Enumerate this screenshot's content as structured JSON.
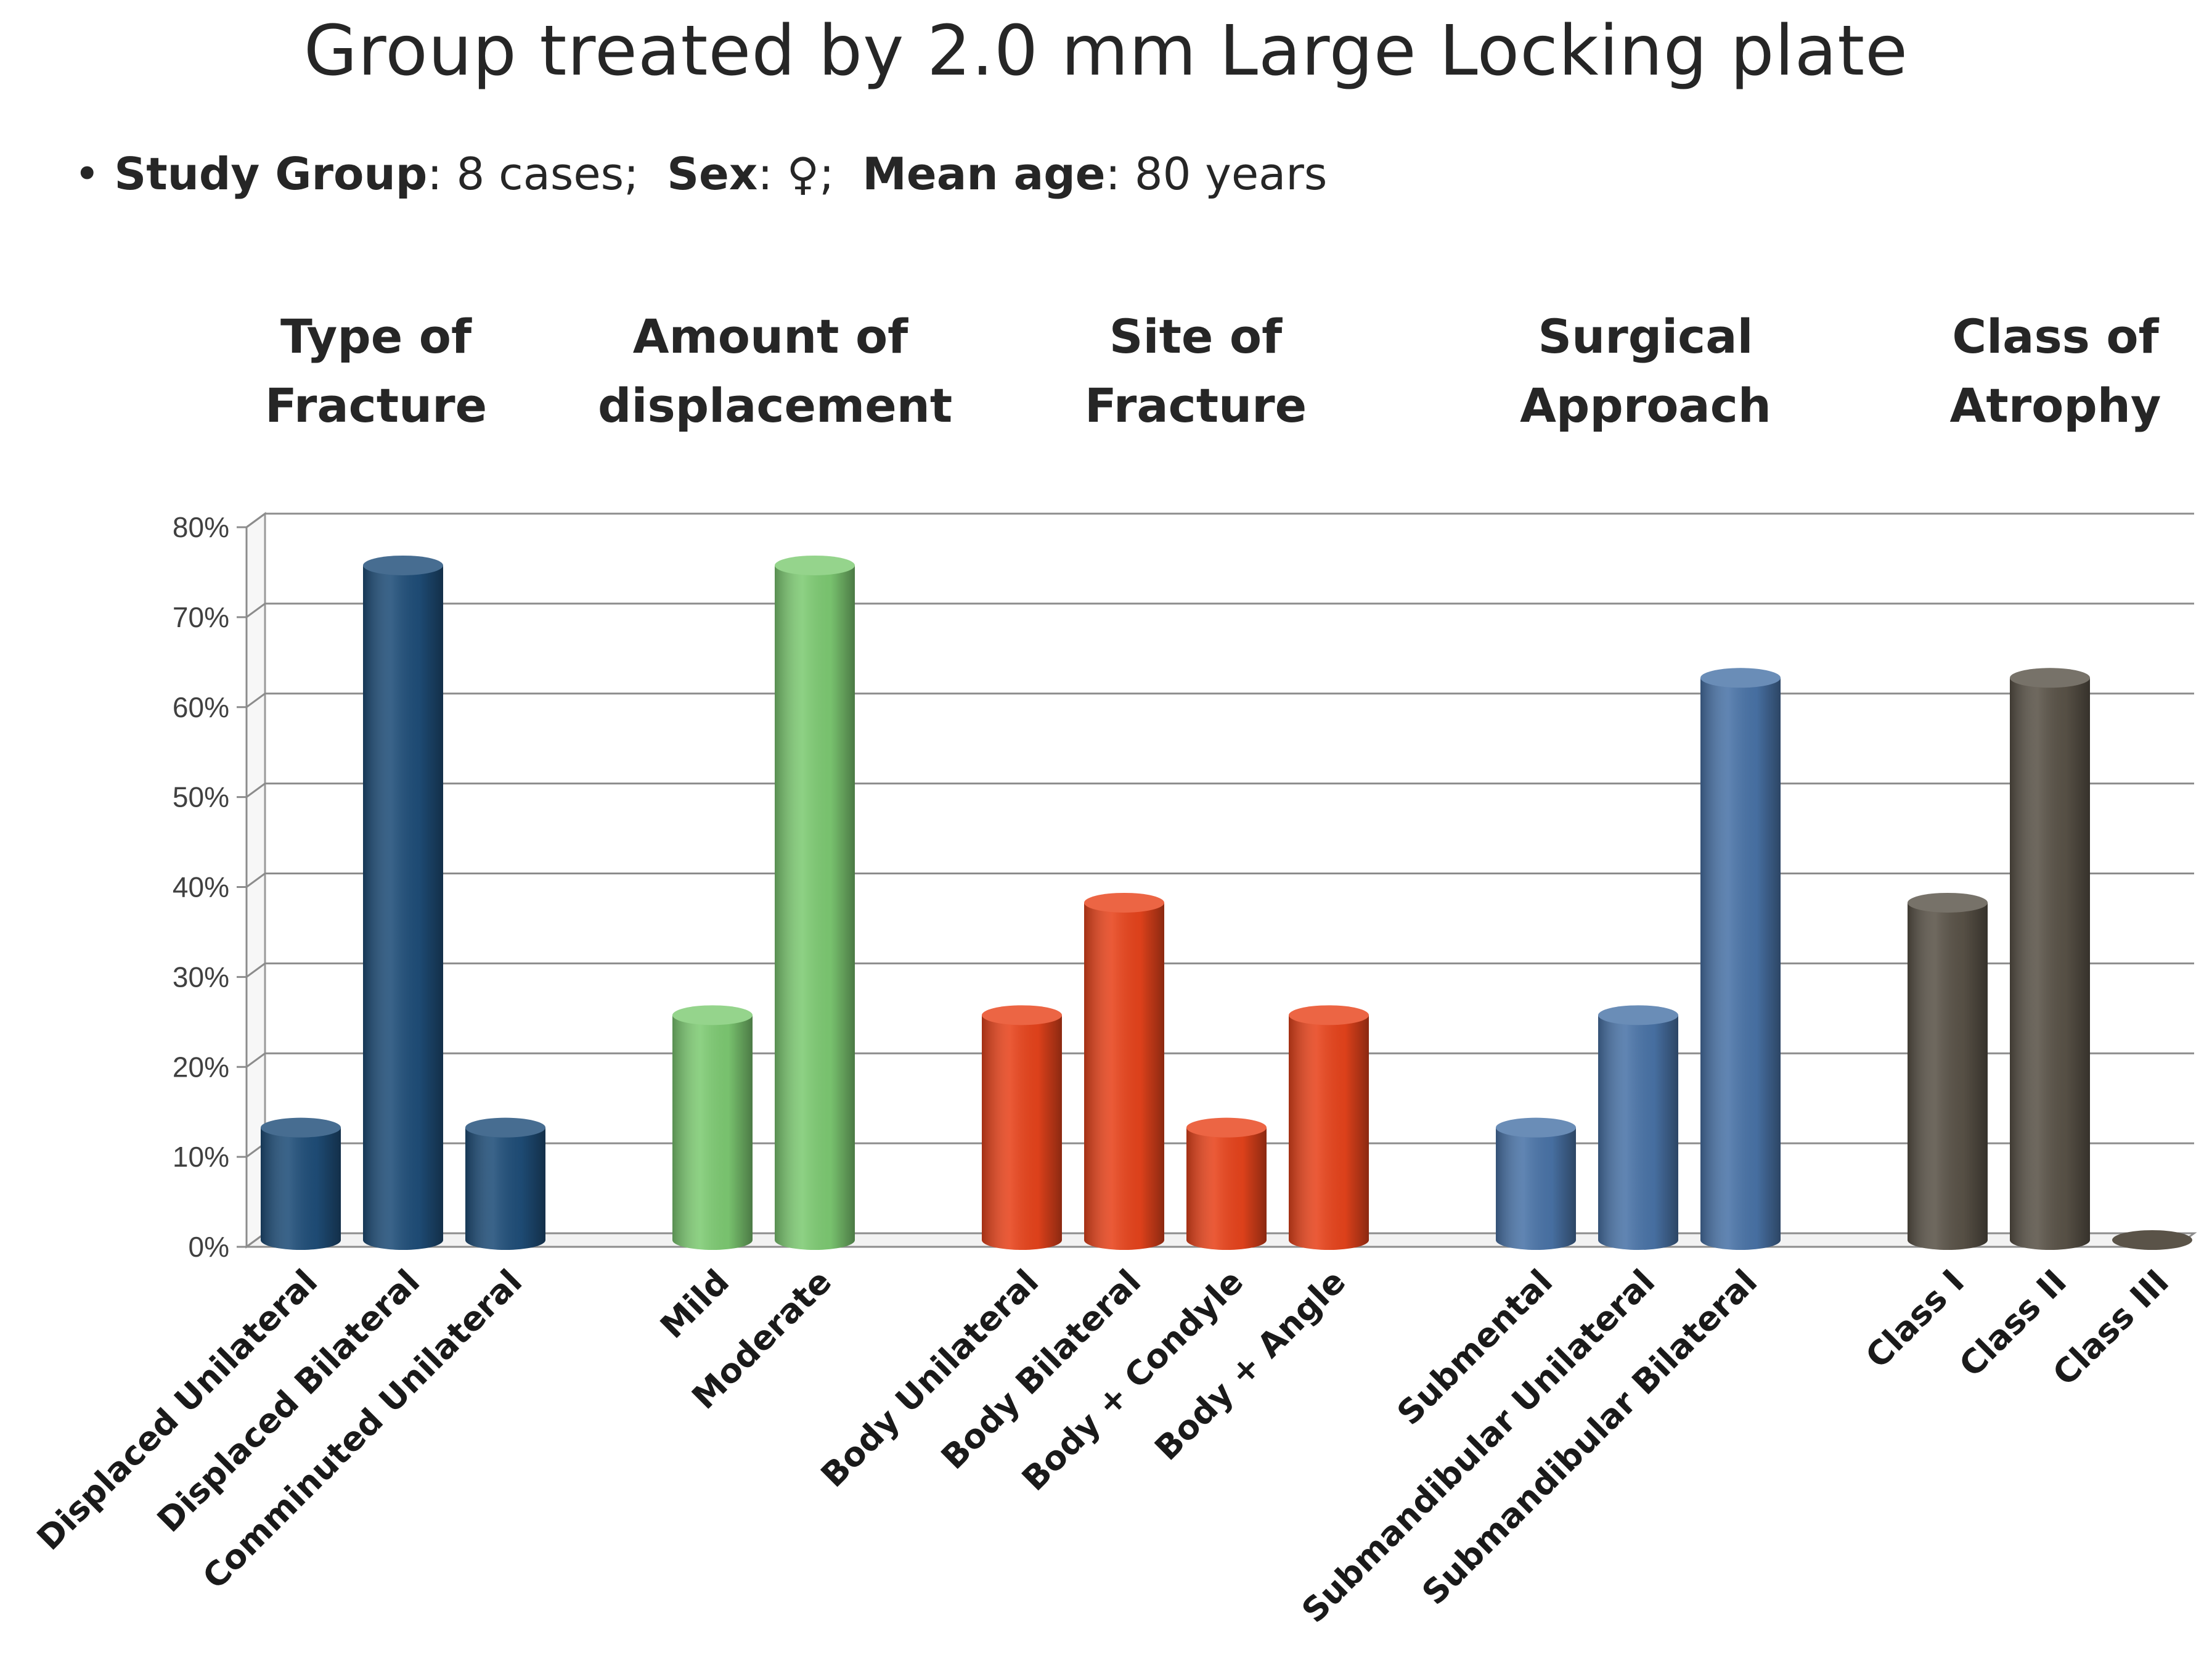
{
  "title": "Group treated by 2.0 mm Large Locking plate",
  "subtitle": {
    "bullet": "•",
    "study_group_label": "Study Group",
    "study_group_value": ": 8 cases;",
    "sex_label": "Sex",
    "sex_value": ": ♀;",
    "age_label": "Mean age",
    "age_value": ": 80 years"
  },
  "group_headings": [
    {
      "line1": "Type of",
      "line2": "Fracture"
    },
    {
      "line1": "Amount of",
      "line2": "displacement"
    },
    {
      "line1": "Site of",
      "line2": "Fracture"
    },
    {
      "line1": "Surgical",
      "line2": "Approach"
    },
    {
      "line1": "Class of",
      "line2": "Atrophy"
    }
  ],
  "chart_data": {
    "type": "bar",
    "title": "Group treated by 2.0 mm Large Locking plate",
    "ylabel": "",
    "ylim": [
      0,
      80
    ],
    "yticks": [
      "0%",
      "10%",
      "20%",
      "30%",
      "40%",
      "50%",
      "60%",
      "70%",
      "80%"
    ],
    "grid": true,
    "groups": [
      {
        "name": "Type of Fracture",
        "color": "#1f4e79",
        "categories": [
          "Displaced Unilateral",
          "Displaced Bilateral",
          "Comminuted Unilateral"
        ],
        "values": [
          12.5,
          75,
          12.5
        ]
      },
      {
        "name": "Amount of displacement",
        "color": "#7ecb73",
        "categories": [
          "Mild",
          "Moderate"
        ],
        "values": [
          25,
          75
        ]
      },
      {
        "name": "Site of Fracture",
        "color": "#e8441c",
        "categories": [
          "Body Unilateral",
          "Body Bilateral",
          "Body + Condyle",
          "Body + Angle"
        ],
        "values": [
          25,
          37.5,
          12.5,
          25
        ]
      },
      {
        "name": "Surgical Approach",
        "color": "#4a74a8",
        "categories": [
          "Submental",
          "Submandibular Unilateral",
          "Submandibular Bilateral"
        ],
        "values": [
          12.5,
          25,
          62.5
        ]
      },
      {
        "name": "Class of Atrophy",
        "color": "#5a5348",
        "categories": [
          "Class I",
          "Class II",
          "Class III"
        ],
        "values": [
          37.5,
          62.5,
          0
        ]
      }
    ]
  }
}
